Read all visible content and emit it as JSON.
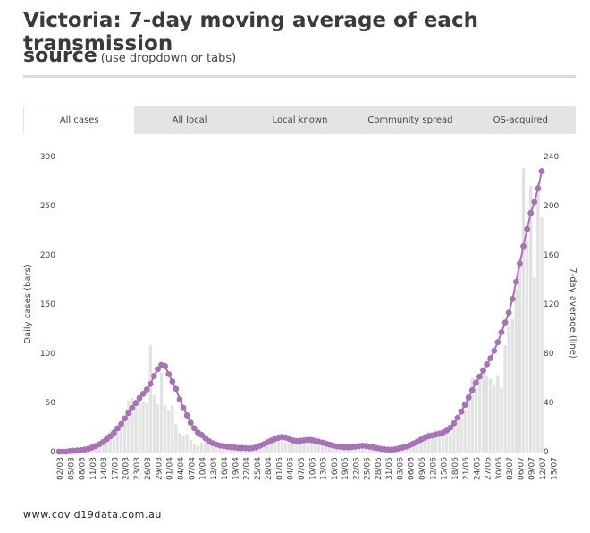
{
  "title": "Victoria: 7-day moving average of each transmission",
  "title_line2": "source",
  "subtitle": "(use dropdown or tabs)",
  "tabs": [
    {
      "label": "All cases",
      "active": true
    },
    {
      "label": "All local",
      "active": false
    },
    {
      "label": "Local known",
      "active": false
    },
    {
      "label": "Community spread",
      "active": false
    },
    {
      "label": "OS-acquired",
      "active": false
    }
  ],
  "footer": "www.covid19data.com.au",
  "chart_data": {
    "type": "bar",
    "title": "Victoria: 7-day moving average of each transmission source",
    "ylabel_left": "Daily cases (bars)",
    "ylabel_right": "7-day average (line)",
    "ylim_left": [
      0,
      300
    ],
    "ylim_right": [
      0,
      240
    ],
    "yticks_left": [
      0,
      50,
      100,
      150,
      200,
      250,
      300
    ],
    "yticks_right": [
      0,
      40,
      80,
      120,
      160,
      200,
      240
    ],
    "xtick_labels": [
      "02/03",
      "05/03",
      "08/03",
      "11/03",
      "14/03",
      "17/03",
      "20/03",
      "23/03",
      "26/03",
      "29/03",
      "01/04",
      "04/04",
      "07/04",
      "10/04",
      "13/04",
      "16/04",
      "19/04",
      "22/04",
      "25/04",
      "28/04",
      "01/05",
      "04/05",
      "07/05",
      "10/05",
      "13/05",
      "16/05",
      "19/05",
      "22/05",
      "25/05",
      "28/05",
      "31/05",
      "03/06",
      "06/06",
      "09/06",
      "12/06",
      "15/06",
      "18/06",
      "21/06",
      "24/06",
      "27/06",
      "30/06",
      "03/07",
      "06/07",
      "09/07",
      "12/07",
      "15/07"
    ],
    "series": [
      {
        "name": "Daily cases",
        "axis": "left",
        "kind": "bar",
        "color": "#e2e2e2",
        "values": [
          1,
          0,
          1,
          0,
          1,
          2,
          1,
          3,
          4,
          6,
          8,
          10,
          14,
          18,
          20,
          22,
          26,
          30,
          36,
          52,
          55,
          52,
          51,
          50,
          49,
          108,
          58,
          48,
          80,
          47,
          42,
          47,
          28,
          19,
          16,
          18,
          12,
          8,
          6,
          9,
          12,
          14,
          5,
          4,
          6,
          8,
          4,
          3,
          2,
          2,
          3,
          3,
          4,
          6,
          8,
          9,
          10,
          12,
          15,
          17,
          14,
          13,
          9,
          8,
          10,
          11,
          12,
          10,
          13,
          15,
          16,
          14,
          10,
          8,
          7,
          6,
          5,
          4,
          5,
          5,
          6,
          7,
          8,
          9,
          6,
          5,
          4,
          4,
          3,
          2,
          1,
          2,
          3,
          3,
          4,
          6,
          8,
          10,
          12,
          15,
          18,
          20,
          17,
          22,
          20,
          16,
          18,
          19,
          24,
          30,
          34,
          41,
          57,
          75,
          64,
          77,
          86,
          77,
          74,
          68,
          78,
          65,
          108,
          127,
          135,
          165,
          191,
          288,
          214,
          270,
          177,
          273,
          238
        ]
      },
      {
        "name": "7-day average",
        "axis": "right",
        "kind": "line",
        "color": "#a872b6",
        "values": [
          0,
          0,
          0,
          0.5,
          0.7,
          1.0,
          1.2,
          1.7,
          2.3,
          3.3,
          4.5,
          6.0,
          7.7,
          10.0,
          12.4,
          15.3,
          18.9,
          22.5,
          27.0,
          31.5,
          35.5,
          39.5,
          43.5,
          47.0,
          50.5,
          55.0,
          61.5,
          67.0,
          70.5,
          69.5,
          63.0,
          57.0,
          51.0,
          42.5,
          35.5,
          29.5,
          23.5,
          19.0,
          15.5,
          13.5,
          11.0,
          8.5,
          6.8,
          5.8,
          5.0,
          4.5,
          4.0,
          3.7,
          3.4,
          3.0,
          3.0,
          2.8,
          2.6,
          2.9,
          3.6,
          4.8,
          6.2,
          7.6,
          9.0,
          10.3,
          11.3,
          12.0,
          11.4,
          10.2,
          9.1,
          8.6,
          8.8,
          9.2,
          9.6,
          9.4,
          8.7,
          8.0,
          7.3,
          6.5,
          5.7,
          4.9,
          4.3,
          3.9,
          3.6,
          3.5,
          3.7,
          4.1,
          4.5,
          4.8,
          4.6,
          4.1,
          3.5,
          2.9,
          2.3,
          1.9,
          1.6,
          1.6,
          2.0,
          2.6,
          3.3,
          4.2,
          5.4,
          6.7,
          8.2,
          9.8,
          11.3,
          12.5,
          13.2,
          13.8,
          14.5,
          15.5,
          17.0,
          19.5,
          23.0,
          27.5,
          32.5,
          38.0,
          44.0,
          50.0,
          56.0,
          61.0,
          66.0,
          71.0,
          76.0,
          82.0,
          89.0,
          97.0,
          105.0,
          113.0,
          124.0,
          138.0,
          153.0,
          167.0,
          181.0,
          194.0,
          203.0,
          214.0,
          228.0
        ]
      }
    ]
  }
}
